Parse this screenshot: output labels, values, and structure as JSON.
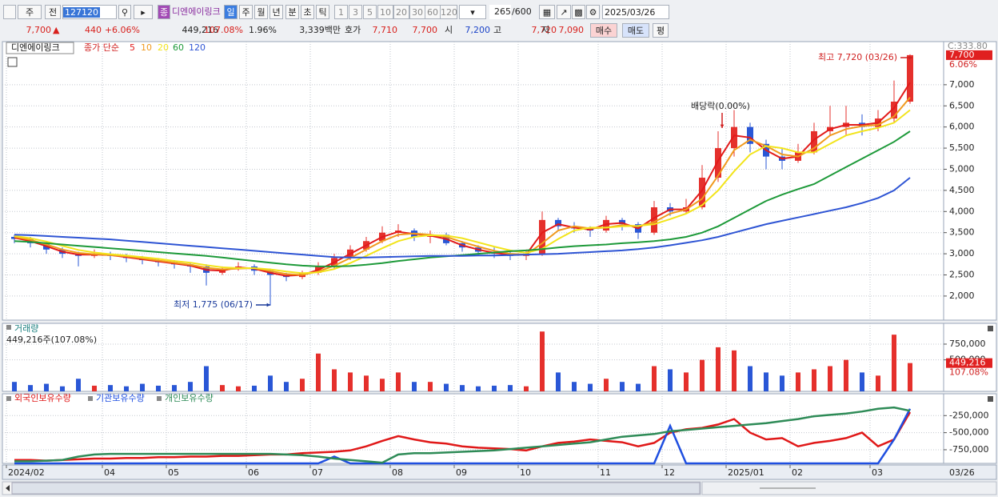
{
  "toolbar": {
    "period_type": "주",
    "prev": "전",
    "code": "127120",
    "stock_badge": "종",
    "stock_name": "디엔에이링크",
    "periods": [
      "일",
      "주",
      "월",
      "년",
      "분",
      "초",
      "틱"
    ],
    "intervals": [
      "1",
      "3",
      "5",
      "10",
      "20",
      "30",
      "60",
      "120"
    ],
    "count": "265",
    "count_max": "/600",
    "date": "2025/03/26"
  },
  "quote": {
    "price": "7,700",
    "arrow": "▲",
    "change": "440",
    "change_pct": "+6.06%",
    "volume": "449,216",
    "volume_ratio": "107.08%",
    "turnover": "1.96%",
    "amount": "3,339백만",
    "hoga_label": "호가",
    "ask": "7,710",
    "bid": "7,700",
    "open_label": "시",
    "open": "7,200",
    "high_label": "고",
    "high": "7,720",
    "low_label": "저",
    "low": "7,090",
    "buy": "매수",
    "sell": "매도",
    "avg": "평"
  },
  "chart_data": [
    {
      "type": "candlestick",
      "title": "디엔에이링크",
      "legend_title": "종가 단순",
      "categories": [
        "2024/02",
        null,
        null,
        null,
        null,
        null,
        "04",
        null,
        null,
        null,
        "05",
        null,
        null,
        null,
        null,
        "06",
        null,
        null,
        null,
        "07",
        null,
        null,
        null,
        null,
        "08",
        null,
        null,
        null,
        "09",
        null,
        null,
        null,
        "10",
        null,
        null,
        null,
        null,
        "11",
        null,
        null,
        null,
        "12",
        null,
        null,
        null,
        "2025/01",
        null,
        null,
        null,
        "02",
        null,
        null,
        null,
        null,
        "03",
        null,
        null
      ],
      "x_end_label": "03/26",
      "open": [
        3400,
        3350,
        3250,
        3100,
        3000,
        2950,
        3000,
        2950,
        2900,
        2850,
        2800,
        2750,
        2700,
        2550,
        2650,
        2700,
        2600,
        2500,
        2450,
        2550,
        2700,
        2900,
        3100,
        3300,
        3500,
        3550,
        3400,
        3450,
        3250,
        3150,
        3050,
        3000,
        2950,
        3000,
        3800,
        3650,
        3600,
        3550,
        3800,
        3700,
        3500,
        4100,
        4000,
        4100,
        4800,
        5500,
        6000,
        5600,
        5300,
        5200,
        5400,
        5900,
        6000,
        6100,
        6000,
        6200,
        6600
      ],
      "high": [
        3450,
        3400,
        3300,
        3150,
        3050,
        3100,
        3050,
        3000,
        2950,
        2900,
        2850,
        2800,
        2750,
        2700,
        2800,
        2750,
        2650,
        2550,
        2600,
        2800,
        3000,
        3200,
        3400,
        3650,
        3700,
        3600,
        3550,
        3500,
        3300,
        3200,
        3150,
        3050,
        3100,
        4000,
        3850,
        3750,
        3650,
        3900,
        3850,
        3750,
        4250,
        4200,
        4300,
        5100,
        5900,
        6400,
        6100,
        5700,
        5500,
        5600,
        6100,
        6500,
        6500,
        6300,
        6400,
        7100,
        7720
      ],
      "low": [
        3250,
        3150,
        3000,
        2900,
        2700,
        2900,
        2850,
        2800,
        2750,
        2700,
        2650,
        2550,
        2250,
        2500,
        2600,
        2500,
        1775,
        2350,
        2400,
        2500,
        2650,
        2850,
        3050,
        3250,
        3400,
        3300,
        3250,
        3200,
        3050,
        2950,
        2900,
        2850,
        2850,
        2950,
        3550,
        3500,
        3400,
        3500,
        3550,
        3350,
        3450,
        3900,
        3950,
        4050,
        4700,
        5300,
        5400,
        5000,
        5000,
        5150,
        5350,
        5800,
        5800,
        5800,
        5900,
        6100,
        6550
      ],
      "close": [
        3350,
        3250,
        3100,
        3000,
        2950,
        3000,
        2950,
        2900,
        2850,
        2800,
        2750,
        2700,
        2550,
        2650,
        2700,
        2600,
        2500,
        2450,
        2550,
        2700,
        2900,
        3100,
        3300,
        3500,
        3550,
        3400,
        3450,
        3250,
        3150,
        3050,
        3000,
        2950,
        3000,
        3800,
        3650,
        3600,
        3550,
        3800,
        3700,
        3500,
        4100,
        4000,
        4100,
        4800,
        5500,
        6000,
        5600,
        5300,
        5200,
        5400,
        5900,
        6000,
        6100,
        6000,
        6200,
        6600,
        7700
      ],
      "up_color": "#e5302c",
      "down_color": "#2a57d6",
      "series": [
        {
          "name": "5",
          "color": "#e21b1b",
          "values": [
            3380,
            3300,
            3180,
            3050,
            2980,
            2980,
            2970,
            2920,
            2870,
            2820,
            2770,
            2720,
            2620,
            2600,
            2680,
            2650,
            2550,
            2480,
            2500,
            2620,
            2800,
            3000,
            3200,
            3400,
            3520,
            3470,
            3430,
            3350,
            3200,
            3100,
            3020,
            2980,
            2980,
            3500,
            3700,
            3620,
            3570,
            3700,
            3730,
            3600,
            3850,
            4050,
            4050,
            4500,
            5200,
            5800,
            5750,
            5450,
            5250,
            5300,
            5700,
            5950,
            6050,
            6050,
            6100,
            6450,
            7050
          ]
        },
        {
          "name": "10",
          "color": "#f09a1e",
          "values": [
            3400,
            3330,
            3220,
            3100,
            3020,
            2990,
            2970,
            2940,
            2890,
            2840,
            2790,
            2740,
            2670,
            2630,
            2650,
            2660,
            2590,
            2520,
            2500,
            2580,
            2720,
            2900,
            3100,
            3300,
            3450,
            3480,
            3450,
            3400,
            3280,
            3170,
            3070,
            3000,
            2980,
            3250,
            3550,
            3650,
            3600,
            3620,
            3680,
            3650,
            3750,
            3950,
            4050,
            4300,
            4850,
            5450,
            5700,
            5550,
            5350,
            5300,
            5500,
            5800,
            5950,
            6020,
            6050,
            6250,
            6700
          ]
        },
        {
          "name": "20",
          "color": "#f2e41c",
          "values": [
            3420,
            3370,
            3290,
            3190,
            3090,
            3030,
            2990,
            2960,
            2920,
            2880,
            2830,
            2790,
            2730,
            2680,
            2660,
            2660,
            2630,
            2580,
            2540,
            2560,
            2640,
            2780,
            2950,
            3130,
            3300,
            3400,
            3440,
            3430,
            3370,
            3270,
            3170,
            3080,
            3020,
            3120,
            3350,
            3550,
            3620,
            3620,
            3650,
            3660,
            3700,
            3820,
            3950,
            4150,
            4500,
            4950,
            5350,
            5550,
            5500,
            5400,
            5400,
            5600,
            5800,
            5900,
            5980,
            6100,
            6400
          ]
        },
        {
          "name": "60",
          "color": "#1e9a3a",
          "values": [
            3300,
            3280,
            3250,
            3220,
            3190,
            3160,
            3130,
            3100,
            3070,
            3040,
            3010,
            2980,
            2950,
            2910,
            2870,
            2830,
            2790,
            2750,
            2720,
            2700,
            2700,
            2710,
            2740,
            2780,
            2830,
            2870,
            2910,
            2940,
            2970,
            3000,
            3030,
            3060,
            3080,
            3110,
            3150,
            3180,
            3200,
            3220,
            3250,
            3270,
            3300,
            3340,
            3400,
            3500,
            3650,
            3850,
            4050,
            4250,
            4400,
            4530,
            4650,
            4850,
            5050,
            5250,
            5450,
            5650,
            5900
          ]
        },
        {
          "name": "120",
          "color": "#2f55d4",
          "values": [
            3450,
            3440,
            3420,
            3400,
            3380,
            3360,
            3340,
            3310,
            3280,
            3250,
            3220,
            3190,
            3160,
            3130,
            3100,
            3070,
            3040,
            3010,
            2980,
            2950,
            2920,
            2910,
            2910,
            2920,
            2930,
            2940,
            2950,
            2950,
            2950,
            2960,
            2960,
            2970,
            2980,
            2990,
            3000,
            3020,
            3040,
            3060,
            3080,
            3110,
            3150,
            3200,
            3260,
            3320,
            3400,
            3500,
            3600,
            3700,
            3780,
            3860,
            3940,
            4020,
            4100,
            4200,
            4320,
            4500,
            4800
          ]
        }
      ],
      "ylim": [
        1430,
        8020
      ],
      "yticks": [
        {
          "value": 2000,
          "label": "2,000"
        },
        {
          "value": 2500,
          "label": "2,500"
        },
        {
          "value": 3000,
          "label": "3,000"
        },
        {
          "value": 3500,
          "label": "3,500"
        },
        {
          "value": 4000,
          "label": "4,000"
        },
        {
          "value": 4500,
          "label": "4,500"
        },
        {
          "value": 5000,
          "label": "5,000"
        },
        {
          "value": 5500,
          "label": "5,500"
        },
        {
          "value": 6000,
          "label": "6,000"
        },
        {
          "value": 6500,
          "label": "6,500"
        },
        {
          "value": 7000,
          "label": "7,000"
        }
      ],
      "grid": true,
      "top_label": "C:333.80",
      "last_price_label": "7,700",
      "last_change_label": "6.06%",
      "annotations": [
        "최고 7,720 (03/26)",
        "배당락(0.00%)",
        "최저 1,775 (06/17)"
      ]
    },
    {
      "type": "bar",
      "title": "거래량",
      "subtitle": "449,216주(107.08%)",
      "values": [
        150000,
        100000,
        120000,
        80000,
        200000,
        90000,
        100000,
        80000,
        120000,
        90000,
        100000,
        150000,
        400000,
        100000,
        80000,
        90000,
        250000,
        150000,
        200000,
        600000,
        350000,
        300000,
        250000,
        200000,
        300000,
        150000,
        150000,
        120000,
        100000,
        80000,
        90000,
        100000,
        80000,
        950000,
        300000,
        150000,
        120000,
        200000,
        150000,
        120000,
        400000,
        350000,
        300000,
        500000,
        700000,
        650000,
        400000,
        300000,
        250000,
        300000,
        350000,
        400000,
        500000,
        300000,
        250000,
        900000,
        449216
      ],
      "ylim": [
        0,
        1080000
      ],
      "yticks": [
        {
          "value": 500000,
          "label": "500,000"
        },
        {
          "value": 750000,
          "label": "750,000"
        }
      ],
      "grid": true,
      "last_value_label": "449,216",
      "last_ratio_label": "107.08%"
    },
    {
      "type": "line",
      "series": [
        {
          "name": "외국인보유수량",
          "color": "#e01818",
          "values": [
            -900000,
            -900000,
            -910000,
            -900000,
            -890000,
            -880000,
            -880000,
            -870000,
            -870000,
            -860000,
            -860000,
            -850000,
            -850000,
            -840000,
            -840000,
            -830000,
            -820000,
            -820000,
            -800000,
            -790000,
            -780000,
            -760000,
            -700000,
            -620000,
            -550000,
            -600000,
            -640000,
            -660000,
            -700000,
            -720000,
            -730000,
            -740000,
            -760000,
            -700000,
            -650000,
            -630000,
            -600000,
            -620000,
            -640000,
            -700000,
            -650000,
            -500000,
            -450000,
            -430000,
            -380000,
            -300000,
            -500000,
            -600000,
            -580000,
            -700000,
            -650000,
            -620000,
            -580000,
            -500000,
            -700000,
            -600000,
            -200000
          ]
        },
        {
          "name": "기관보유수량",
          "color": "#1f4fe0",
          "values": [
            -950000,
            -950000,
            -950000,
            -950000,
            -950000,
            -950000,
            -950000,
            -950000,
            -950000,
            -950000,
            -950000,
            -950000,
            -950000,
            -950000,
            -950000,
            -950000,
            -950000,
            -950000,
            -950000,
            -950000,
            -850000,
            -950000,
            -950000,
            -950000,
            -950000,
            -950000,
            -950000,
            -950000,
            -950000,
            -950000,
            -950000,
            -950000,
            -950000,
            -950000,
            -950000,
            -950000,
            -950000,
            -950000,
            -950000,
            -950000,
            -950000,
            -400000,
            -950000,
            -950000,
            -950000,
            -950000,
            -950000,
            -950000,
            -950000,
            -950000,
            -950000,
            -950000,
            -950000,
            -950000,
            -950000,
            -600000,
            -150000
          ]
        },
        {
          "name": "개인보유수량",
          "color": "#2e8b57",
          "values": [
            -920000,
            -920000,
            -910000,
            -900000,
            -850000,
            -820000,
            -810000,
            -810000,
            -810000,
            -810000,
            -810000,
            -810000,
            -810000,
            -810000,
            -810000,
            -810000,
            -810000,
            -820000,
            -830000,
            -850000,
            -880000,
            -900000,
            -920000,
            -940000,
            -820000,
            -800000,
            -800000,
            -790000,
            -780000,
            -770000,
            -760000,
            -740000,
            -720000,
            -700000,
            -680000,
            -660000,
            -640000,
            -600000,
            -560000,
            -540000,
            -520000,
            -480000,
            -460000,
            -440000,
            -420000,
            -400000,
            -380000,
            -360000,
            -330000,
            -300000,
            -260000,
            -240000,
            -220000,
            -190000,
            -150000,
            -130000,
            -180000
          ]
        }
      ],
      "ylim": [
        -950000,
        70000
      ],
      "yticks": [
        {
          "value": -750000,
          "label": "-750,000"
        },
        {
          "value": -500000,
          "label": "-500,000"
        },
        {
          "value": -250000,
          "label": "-250,000"
        }
      ],
      "grid": true
    }
  ]
}
